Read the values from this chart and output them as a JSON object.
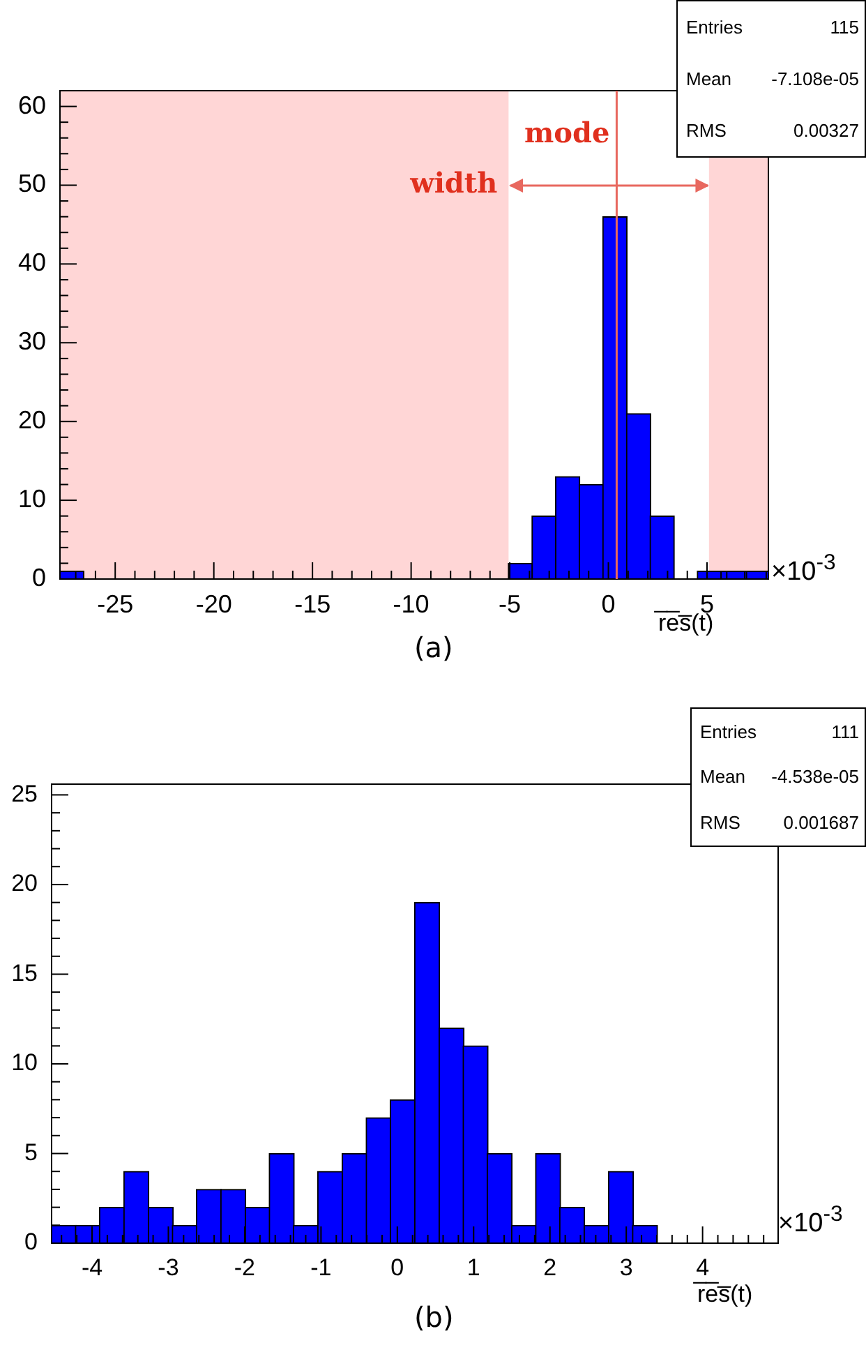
{
  "chart_data": [
    {
      "type": "histogram",
      "xlabel": "r̅e̅s̅(t)",
      "color": "#0000ff",
      "bins": [
        -27.8,
        -26.6,
        -25.41,
        -24.21,
        -23.01,
        -21.82,
        -20.62,
        -19.42,
        -18.22,
        -17.03,
        -15.83,
        -14.63,
        -13.44,
        -12.24,
        -11.04,
        -9.85,
        -8.65,
        -7.45,
        -6.25,
        -5.06,
        -3.86,
        -2.66,
        -1.47,
        -0.27,
        0.93,
        2.13,
        3.32,
        4.52,
        5.72,
        6.91,
        8.11
      ],
      "values": [
        1,
        0,
        0,
        0,
        0,
        0,
        0,
        0,
        0,
        0,
        0,
        0,
        0,
        0,
        0,
        0,
        0,
        0,
        0,
        2,
        8,
        13,
        12,
        46,
        21,
        8,
        0,
        1,
        1,
        1
      ],
      "xlim": [
        -27.8,
        8.11
      ],
      "ylim": [
        0,
        62
      ],
      "xticks": [
        {
          "value": -27,
          "label": null
        },
        {
          "value": -26,
          "label": null
        },
        -25,
        {
          "value": -24,
          "label": null
        },
        {
          "value": -23,
          "label": null
        },
        {
          "value": -22,
          "label": null
        },
        {
          "value": -21,
          "label": null
        },
        -20,
        {
          "value": -19,
          "label": null
        },
        {
          "value": -18,
          "label": null
        },
        {
          "value": -17,
          "label": null
        },
        {
          "value": -16,
          "label": null
        },
        -15,
        {
          "value": -14,
          "label": null
        },
        {
          "value": -13,
          "label": null
        },
        {
          "value": -12,
          "label": null
        },
        {
          "value": -11,
          "label": null
        },
        -10,
        {
          "value": -9,
          "label": null
        },
        {
          "value": -8,
          "label": null
        },
        {
          "value": -7,
          "label": null
        },
        {
          "value": -6,
          "label": null
        },
        -5,
        {
          "value": -4,
          "label": null
        },
        {
          "value": -3,
          "label": null
        },
        {
          "value": -2,
          "label": null
        },
        {
          "value": -1,
          "label": null
        },
        0,
        {
          "value": 1,
          "label": null
        },
        {
          "value": 2,
          "label": null
        },
        {
          "value": 3,
          "label": null
        },
        {
          "value": 4,
          "label": null
        },
        5,
        {
          "value": 6,
          "label": null
        },
        {
          "value": 7,
          "label": null
        },
        {
          "value": 8,
          "label": null
        }
      ],
      "yticks": [
        0,
        {
          "value": 2,
          "label": null
        },
        {
          "value": 4,
          "label": null
        },
        {
          "value": 6,
          "label": null
        },
        {
          "value": 8,
          "label": null
        },
        10,
        {
          "value": 12,
          "label": null
        },
        {
          "value": 14,
          "label": null
        },
        {
          "value": 16,
          "label": null
        },
        {
          "value": 18,
          "label": null
        },
        20,
        {
          "value": 22,
          "label": null
        },
        {
          "value": 24,
          "label": null
        },
        {
          "value": 26,
          "label": null
        },
        {
          "value": 28,
          "label": null
        },
        30,
        {
          "value": 32,
          "label": null
        },
        {
          "value": 34,
          "label": null
        },
        {
          "value": 36,
          "label": null
        },
        {
          "value": 38,
          "label": null
        },
        40,
        {
          "value": 42,
          "label": null
        },
        {
          "value": 44,
          "label": null
        },
        {
          "value": 46,
          "label": null
        },
        {
          "value": 48,
          "label": null
        },
        50,
        {
          "value": 52,
          "label": null
        },
        {
          "value": 54,
          "label": null
        },
        {
          "value": 56,
          "label": null
        },
        {
          "value": 58,
          "label": null
        },
        60
      ],
      "bands": [
        {
          "axis": "x",
          "from": -27.8,
          "to": -5.06,
          "color": "#ffd6d6"
        },
        {
          "axis": "x",
          "from": 5.1,
          "to": 8.11,
          "color": "#ffd6d6"
        }
      ],
      "ref_lines": [
        {
          "axis": "x",
          "value": 0.42,
          "label": "mode",
          "color": "#e8685f"
        }
      ],
      "annotations": [
        "Entries",
        "115",
        "Mean",
        "-7.108e-05",
        "RMS",
        "0.00327",
        "×10$^{-3}$",
        "(a)",
        {
          "text": "width",
          "x": -5.06,
          "y": 50
        }
      ]
    },
    {
      "type": "histogram",
      "xlabel": "r̅e̅s̅(t)",
      "color": "#0000ff",
      "bins": [
        -4.53,
        -4.21,
        -3.9,
        -3.58,
        -3.26,
        -2.94,
        -2.63,
        -2.31,
        -1.99,
        -1.67,
        -1.36,
        -1.04,
        -0.72,
        -0.4,
        -0.09,
        0.23,
        0.55,
        0.87,
        1.18,
        1.5,
        1.82,
        2.13,
        2.45,
        2.77,
        3.09,
        3.4,
        3.72,
        4.04,
        4.36,
        4.67,
        4.99
      ],
      "values": [
        1,
        1,
        2,
        4,
        2,
        1,
        3,
        3,
        2,
        5,
        1,
        4,
        5,
        7,
        8,
        19,
        12,
        11,
        5,
        1,
        5,
        2,
        1,
        4,
        1,
        0,
        0,
        0,
        0,
        0
      ],
      "xlim": [
        -4.53,
        4.99
      ],
      "ylim": [
        0,
        25.6
      ],
      "xticks": [
        {
          "value": -4.4,
          "label": null
        },
        {
          "value": -4.2,
          "label": null
        },
        -4,
        {
          "value": -3.8,
          "label": null
        },
        {
          "value": -3.6,
          "label": null
        },
        {
          "value": -3.4,
          "label": null
        },
        {
          "value": -3.2,
          "label": null
        },
        -3,
        {
          "value": -2.8,
          "label": null
        },
        {
          "value": -2.6,
          "label": null
        },
        {
          "value": -2.4,
          "label": null
        },
        {
          "value": -2.2,
          "label": null
        },
        -2,
        {
          "value": -1.8,
          "label": null
        },
        {
          "value": -1.6,
          "label": null
        },
        {
          "value": -1.4,
          "label": null
        },
        {
          "value": -1.2,
          "label": null
        },
        -1,
        {
          "value": -0.8,
          "label": null
        },
        {
          "value": -0.6,
          "label": null
        },
        {
          "value": -0.4,
          "label": null
        },
        {
          "value": -0.2,
          "label": null
        },
        0,
        {
          "value": 0.2,
          "label": null
        },
        {
          "value": 0.4,
          "label": null
        },
        {
          "value": 0.6,
          "label": null
        },
        {
          "value": 0.8,
          "label": null
        },
        1,
        {
          "value": 1.2,
          "label": null
        },
        {
          "value": 1.4,
          "label": null
        },
        {
          "value": 1.6,
          "label": null
        },
        {
          "value": 1.8,
          "label": null
        },
        2,
        {
          "value": 2.2,
          "label": null
        },
        {
          "value": 2.4,
          "label": null
        },
        {
          "value": 2.6,
          "label": null
        },
        {
          "value": 2.8,
          "label": null
        },
        3,
        {
          "value": 3.2,
          "label": null
        },
        {
          "value": 3.4,
          "label": null
        },
        {
          "value": 3.6,
          "label": null
        },
        {
          "value": 3.8,
          "label": null
        },
        4,
        {
          "value": 4.2,
          "label": null
        },
        {
          "value": 4.4,
          "label": null
        },
        {
          "value": 4.6,
          "label": null
        },
        {
          "value": 4.8,
          "label": null
        }
      ],
      "yticks": [
        0,
        {
          "value": 1,
          "label": null
        },
        {
          "value": 2,
          "label": null
        },
        {
          "value": 3,
          "label": null
        },
        {
          "value": 4,
          "label": null
        },
        5,
        {
          "value": 6,
          "label": null
        },
        {
          "value": 7,
          "label": null
        },
        {
          "value": 8,
          "label": null
        },
        {
          "value": 9,
          "label": null
        },
        10,
        {
          "value": 11,
          "label": null
        },
        {
          "value": 12,
          "label": null
        },
        {
          "value": 13,
          "label": null
        },
        {
          "value": 14,
          "label": null
        },
        15,
        {
          "value": 16,
          "label": null
        },
        {
          "value": 17,
          "label": null
        },
        {
          "value": 18,
          "label": null
        },
        {
          "value": 19,
          "label": null
        },
        20,
        {
          "value": 21,
          "label": null
        },
        {
          "value": 22,
          "label": null
        },
        {
          "value": 23,
          "label": null
        },
        {
          "value": 24,
          "label": null
        },
        25
      ],
      "annotations": [
        "Entries",
        "111",
        "Mean",
        "-4.538e-05",
        "RMS",
        "0.001687",
        "×10$^{-3}$",
        "(b)"
      ]
    }
  ]
}
